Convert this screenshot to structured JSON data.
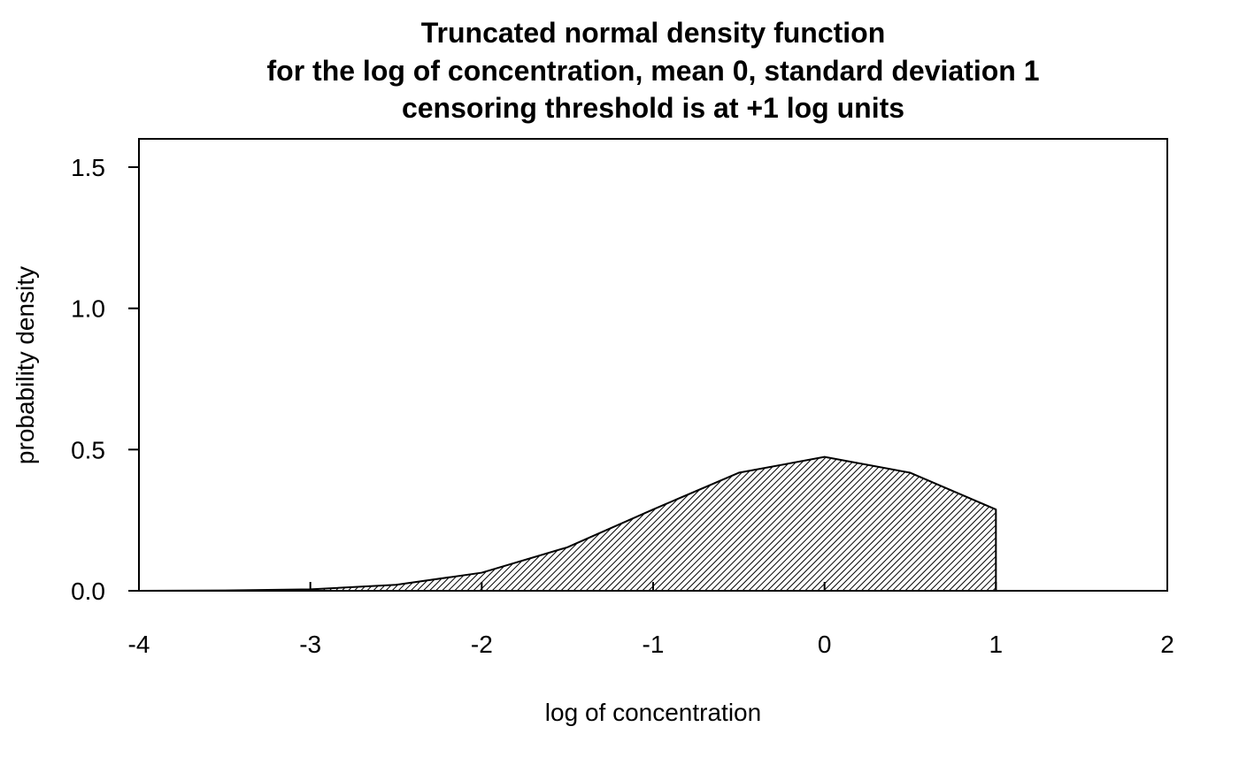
{
  "chart_data": {
    "type": "area",
    "title": "Truncated normal density function",
    "subtitle_lines": [
      "for the log of concentration, mean 0, standard deviation 1",
      "censoring threshold is at +1 log units"
    ],
    "xlabel": "log of concentration",
    "ylabel": "probability density",
    "xlim": [
      -4,
      2
    ],
    "ylim": [
      0,
      1.6
    ],
    "x_ticks": [
      -4,
      -3,
      -2,
      -1,
      0,
      1,
      2
    ],
    "x_tick_labels": [
      "-4",
      "-3",
      "-2",
      "-1",
      "0",
      "1",
      "2"
    ],
    "y_ticks": [
      0,
      0.5,
      1.0,
      1.5
    ],
    "y_tick_labels": [
      "0.0",
      "0.5",
      "1.0",
      "1.5"
    ],
    "grid": false,
    "fill_pattern": "diagonal hatch",
    "series": [
      {
        "x": [
          -4.0,
          -3.5,
          -3.0,
          -2.5,
          -2.0,
          -1.5,
          -1.0,
          -0.5,
          0.0,
          0.5,
          1.0,
          1.0
        ],
        "values": [
          0.0002,
          0.001,
          0.005,
          0.021,
          0.064,
          0.154,
          0.288,
          0.418,
          0.474,
          0.418,
          0.288,
          0.0
        ]
      }
    ],
    "colors": {
      "line": "#000000",
      "hatch": "#000000",
      "background": "#ffffff"
    }
  }
}
